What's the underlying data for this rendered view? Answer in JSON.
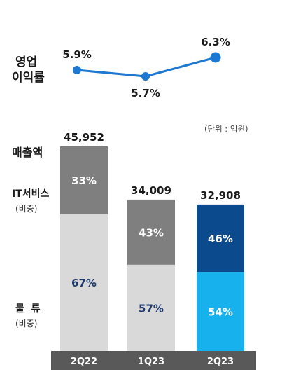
{
  "chart_data": {
    "type": "bar",
    "categories": [
      "2Q22",
      "1Q23",
      "2Q23"
    ],
    "unit_note": "(단위 : 억원)",
    "revenue": {
      "label": "매출액",
      "values": [
        45952,
        34009,
        32908
      ],
      "value_labels": [
        "45,952",
        "34,009",
        "32,908"
      ]
    },
    "series": [
      {
        "name": "IT서비스",
        "sub_label": "(비중)",
        "values": [
          33,
          43,
          46
        ],
        "value_labels": [
          "33%",
          "43%",
          "46%"
        ],
        "colors": [
          "#7f7f7f",
          "#7f7f7f",
          "#0b4a8c"
        ],
        "text_color": "#ffffff"
      },
      {
        "name": "물  류",
        "sub_label": "(비중)",
        "values": [
          67,
          57,
          54
        ],
        "value_labels": [
          "67%",
          "57%",
          "54%"
        ],
        "colors": [
          "#d9d9d9",
          "#d9d9d9",
          "#17b1ee"
        ],
        "text_colors": [
          "#1f3b6e",
          "#1f3b6e",
          "#ffffff"
        ]
      }
    ],
    "margin_line": {
      "name_lines": [
        "영업",
        "이익률"
      ],
      "values": [
        5.9,
        5.7,
        6.3
      ],
      "value_labels": [
        "5.9%",
        "5.7%",
        "6.3%"
      ],
      "color": "#1c78d0"
    },
    "axis_band_color": "#595959"
  }
}
